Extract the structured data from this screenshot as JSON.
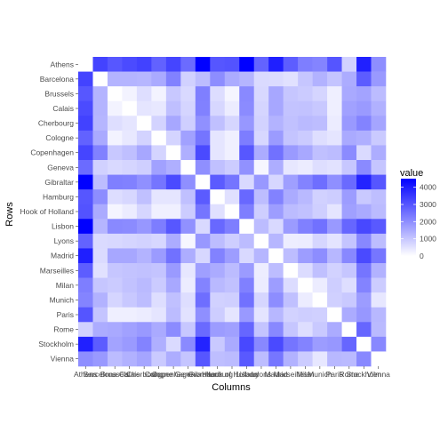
{
  "chart_data": {
    "type": "heatmap",
    "xlabel": "Columns",
    "ylabel": "Rows",
    "legend": {
      "title": "value",
      "position": "right",
      "ticks": [
        0,
        1000,
        2000,
        3000,
        4000
      ],
      "range": [
        0,
        4500
      ],
      "low_color": "#ffffff",
      "high_color": "#0000ff"
    },
    "columns": [
      "Athens",
      "Barcelona",
      "Brussels",
      "Calais",
      "Cherbourg",
      "Cologne",
      "Copenhagen",
      "Geneva",
      "Gibraltar",
      "Hamburg",
      "Hook of Holland",
      "Lisbon",
      "Lyons",
      "Madrid",
      "Marseilles",
      "Milan",
      "Munich",
      "Paris",
      "Rome",
      "Stockholm",
      "Vienna"
    ],
    "rows": [
      "Athens",
      "Barcelona",
      "Brussels",
      "Calais",
      "Cherbourg",
      "Cologne",
      "Copenhagen",
      "Geneva",
      "Gibraltar",
      "Hamburg",
      "Hook of Holland",
      "Lisbon",
      "Lyons",
      "Madrid",
      "Marseilles",
      "Milan",
      "Munich",
      "Paris",
      "Rome",
      "Stockholm",
      "Vienna"
    ],
    "values": [
      [
        0,
        3313,
        2963,
        3175,
        3339,
        2762,
        3276,
        2610,
        4485,
        2977,
        3030,
        4532,
        2753,
        3949,
        2865,
        2282,
        2179,
        3000,
        817,
        3927,
        1991
      ],
      [
        3313,
        0,
        1318,
        1326,
        1294,
        1498,
        2218,
        803,
        1172,
        2018,
        1490,
        1305,
        645,
        636,
        521,
        1014,
        1365,
        1033,
        1460,
        2868,
        1802
      ],
      [
        2963,
        1318,
        0,
        204,
        583,
        206,
        966,
        677,
        2256,
        597,
        172,
        2084,
        690,
        1558,
        1011,
        925,
        747,
        285,
        1511,
        1616,
        1175
      ],
      [
        3175,
        1326,
        204,
        0,
        460,
        409,
        1136,
        747,
        2224,
        714,
        330,
        2052,
        739,
        1550,
        1059,
        1077,
        977,
        280,
        1662,
        1786,
        1381
      ],
      [
        3339,
        1294,
        583,
        460,
        0,
        785,
        1545,
        853,
        1952,
        1110,
        731,
        1827,
        789,
        1347,
        1101,
        1209,
        1160,
        340,
        1794,
        2196,
        1588
      ],
      [
        2762,
        1498,
        206,
        409,
        785,
        0,
        760,
        1662,
        2436,
        460,
        269,
        2290,
        714,
        1764,
        1035,
        911,
        583,
        465,
        1497,
        1403,
        937
      ],
      [
        3276,
        2218,
        966,
        1136,
        1545,
        760,
        0,
        1418,
        3196,
        460,
        269,
        2971,
        1458,
        2498,
        1778,
        1537,
        1104,
        1176,
        2050,
        650,
        1455
      ],
      [
        2610,
        803,
        677,
        747,
        853,
        1662,
        1418,
        0,
        1975,
        1118,
        895,
        1936,
        158,
        1439,
        425,
        328,
        591,
        513,
        995,
        2068,
        1019
      ],
      [
        4485,
        1172,
        2256,
        2224,
        1952,
        2436,
        3196,
        1975,
        0,
        2897,
        2428,
        676,
        1817,
        698,
        1693,
        2185,
        2565,
        1971,
        2631,
        3886,
        2974
      ],
      [
        2977,
        2018,
        597,
        714,
        1110,
        460,
        460,
        1118,
        2897,
        0,
        550,
        2671,
        1159,
        2198,
        1479,
        1238,
        805,
        877,
        1751,
        949,
        1155
      ],
      [
        3030,
        1490,
        172,
        330,
        731,
        269,
        269,
        895,
        2428,
        550,
        0,
        2280,
        863,
        1730,
        1183,
        1098,
        851,
        457,
        1683,
        1500,
        1205
      ],
      [
        4532,
        1305,
        2084,
        2052,
        1827,
        2290,
        2971,
        1936,
        676,
        2671,
        2280,
        0,
        1178,
        668,
        1762,
        2250,
        2507,
        1799,
        2700,
        3231,
        2937
      ],
      [
        2753,
        645,
        690,
        739,
        789,
        714,
        1458,
        158,
        1817,
        1159,
        863,
        1178,
        0,
        1281,
        320,
        328,
        724,
        471,
        1048,
        2108,
        1157
      ],
      [
        3949,
        636,
        1558,
        1550,
        1347,
        1764,
        2498,
        1439,
        698,
        2198,
        1730,
        668,
        1281,
        0,
        1157,
        1724,
        2010,
        1273,
        2097,
        3188,
        2409
      ],
      [
        2865,
        521,
        1011,
        1059,
        1101,
        1035,
        1778,
        425,
        1693,
        1479,
        1183,
        1762,
        320,
        1157,
        0,
        618,
        1109,
        792,
        1011,
        2428,
        1363
      ],
      [
        2282,
        1014,
        925,
        1077,
        1209,
        911,
        1537,
        328,
        2185,
        1238,
        1098,
        2250,
        328,
        1724,
        618,
        0,
        331,
        856,
        586,
        2187,
        898
      ],
      [
        2179,
        1365,
        747,
        977,
        1160,
        583,
        1104,
        591,
        2565,
        805,
        851,
        2507,
        724,
        2010,
        1109,
        331,
        0,
        821,
        946,
        1754,
        428
      ],
      [
        3000,
        1033,
        285,
        280,
        340,
        465,
        1176,
        513,
        1971,
        877,
        457,
        1799,
        471,
        1273,
        792,
        856,
        821,
        0,
        1476,
        1827,
        1249
      ],
      [
        817,
        1460,
        1511,
        1662,
        1794,
        1497,
        2050,
        995,
        2631,
        1751,
        1683,
        2700,
        1048,
        2097,
        1011,
        586,
        946,
        1476,
        0,
        2707,
        1209
      ],
      [
        3927,
        2868,
        1616,
        1786,
        2196,
        1403,
        650,
        2068,
        3886,
        949,
        1500,
        3231,
        2108,
        3188,
        2428,
        2187,
        1754,
        1827,
        2707,
        0,
        2105
      ],
      [
        1991,
        1802,
        1175,
        1381,
        1588,
        937,
        1455,
        1019,
        2974,
        1155,
        1205,
        2937,
        1157,
        2409,
        1363,
        898,
        428,
        1249,
        1209,
        2105,
        0
      ]
    ]
  }
}
